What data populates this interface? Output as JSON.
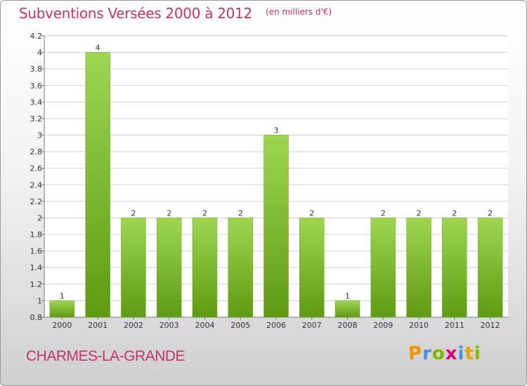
{
  "header": {
    "title": "Subventions Versées 2000 à 2012",
    "unit": "(en milliers d'€)"
  },
  "footer": {
    "commune": "CHARMES-LA-GRANDE",
    "brand": "Proxiti",
    "brand_colors": [
      "#f39200",
      "#4a90d9",
      "#7fb800",
      "#e2007a",
      "#4a90d9",
      "#e8a200",
      "#7fb800"
    ]
  },
  "colors": {
    "title": "#c0336a",
    "bar_light": "#9ed651",
    "bar_dark": "#5f9a12",
    "grid": "#d0d0d0",
    "axis": "#7a7a7a"
  },
  "chart_data": {
    "type": "bar",
    "title": "Subventions Versées 2000 à 2012",
    "xlabel": "",
    "ylabel": "",
    "categories": [
      "2000",
      "2001",
      "2002",
      "2003",
      "2004",
      "2005",
      "2006",
      "2007",
      "2008",
      "2009",
      "2010",
      "2011",
      "2012"
    ],
    "values": [
      1,
      4,
      2,
      2,
      2,
      2,
      3,
      2,
      1,
      2,
      2,
      2,
      2
    ],
    "ylim": [
      0.8,
      4.2
    ],
    "yticks": [
      "0.8",
      "1",
      "1.2",
      "1.4",
      "1.6",
      "1.8",
      "2",
      "2.2",
      "2.4",
      "2.6",
      "2.8",
      "3",
      "3.2",
      "3.4",
      "3.6",
      "3.8",
      "4",
      "4.2"
    ],
    "grid": true,
    "legend": "none"
  }
}
